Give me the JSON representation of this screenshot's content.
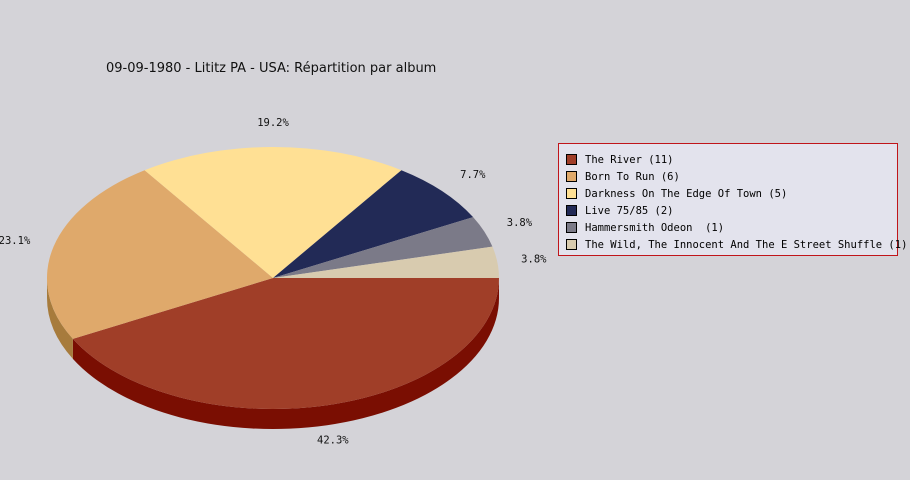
{
  "chart_data": {
    "type": "pie",
    "title": "09-09-1980 - Lititz PA - USA:  Répartition par album",
    "slices": [
      {
        "label": "The River (11)",
        "value": 11,
        "percent_label": "42.3%",
        "color": "#a03e28",
        "side_color": "#7a0e02"
      },
      {
        "label": "Born To Run (6)",
        "value": 6,
        "percent_label": "23.1%",
        "color": "#dfa96b",
        "side_color": "#a77b3c"
      },
      {
        "label": "Darkness On The Edge Of Town (5)",
        "value": 5,
        "percent_label": "19.2%",
        "color": "#ffe094",
        "side_color": "#c4a35a"
      },
      {
        "label": "Live 75/85 (2)",
        "value": 2,
        "percent_label": "7.7%",
        "color": "#222a56",
        "side_color": "#10163a"
      },
      {
        "label": "Hammersmith Odeon  (1)",
        "value": 1,
        "percent_label": "3.8%",
        "color": "#7b7a88",
        "side_color": "#55545f"
      },
      {
        "label": "The Wild, The Innocent And The E Street Shuffle (1)",
        "value": 1,
        "percent_label": "3.8%",
        "color": "#d8cbaf",
        "side_color": "#a89b80"
      }
    ],
    "legend_position": "right"
  }
}
